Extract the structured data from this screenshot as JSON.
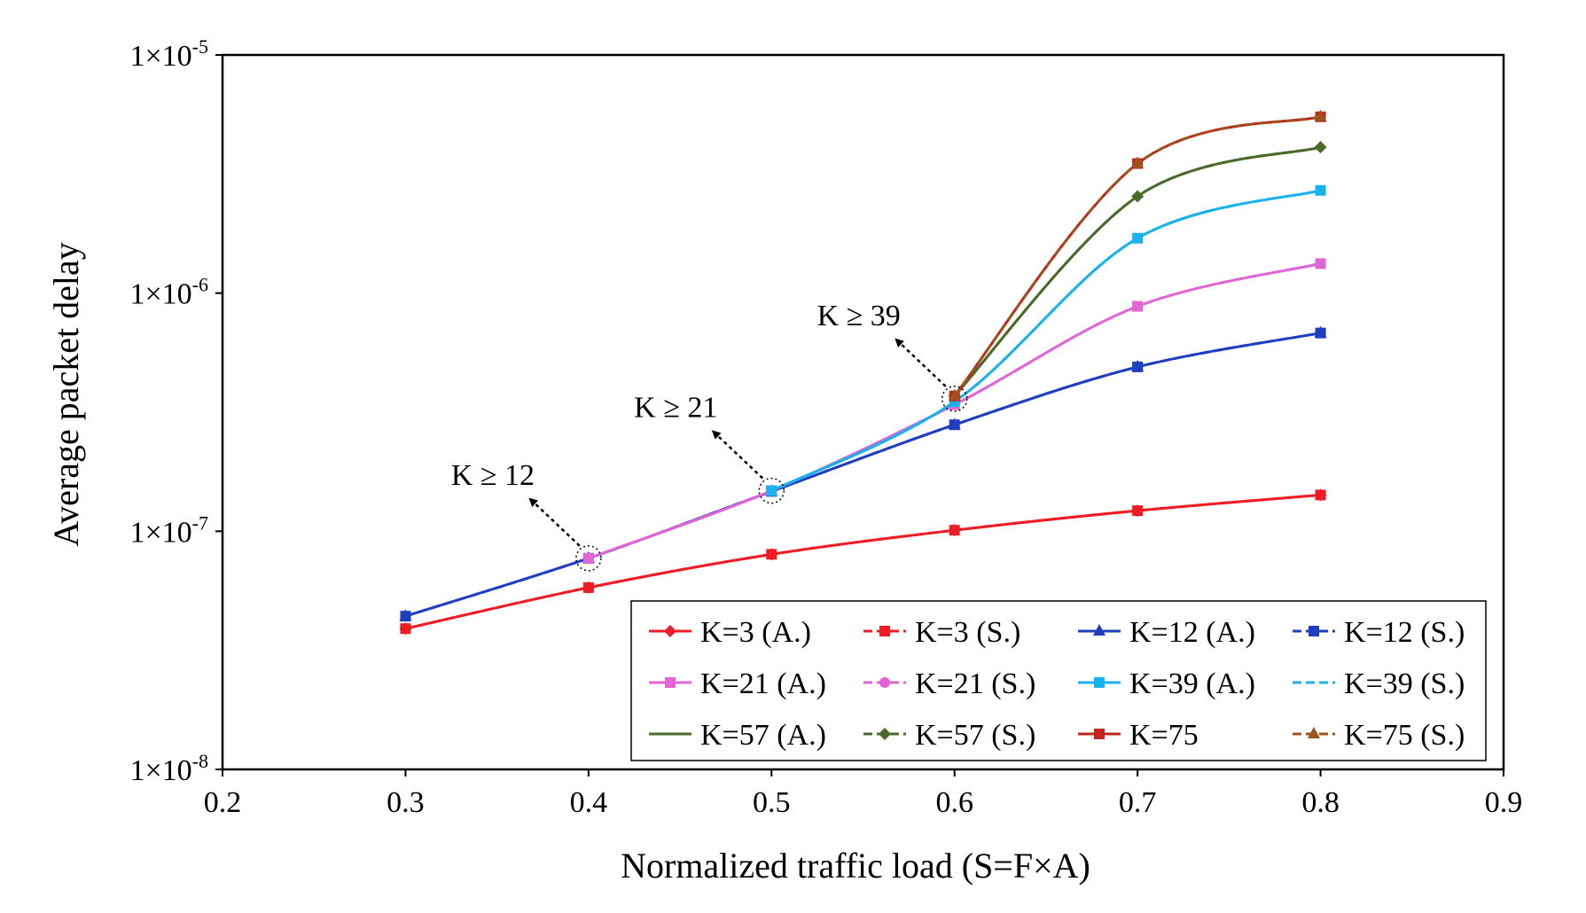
{
  "chart_data": {
    "type": "line",
    "title": "",
    "xlabel": "Normalized traffic load (S=F×A)",
    "ylabel": "Average packet delay",
    "xlim": [
      0.2,
      0.9
    ],
    "ylim": [
      1e-08,
      1e-05
    ],
    "yscale": "log",
    "grid": false,
    "legend_position": "bottom-right",
    "xticks": [
      0.2,
      0.3,
      0.4,
      0.5,
      0.6,
      0.7,
      0.8,
      0.9
    ],
    "xtick_labels": [
      "0.2",
      "0.3",
      "0.4",
      "0.5",
      "0.6",
      "0.7",
      "0.8",
      "0.9"
    ],
    "yticks": [
      {
        "value": 1e-05,
        "mantissa": "1×10",
        "exp": "-5"
      },
      {
        "value": 1e-06,
        "mantissa": "1×10",
        "exp": "-6"
      },
      {
        "value": 1e-07,
        "mantissa": "1×10",
        "exp": "-7"
      },
      {
        "value": 1e-08,
        "mantissa": "1×10",
        "exp": "-8"
      }
    ],
    "x": [
      0.3,
      0.4,
      0.5,
      0.6,
      0.7,
      0.8
    ],
    "series": [
      {
        "name": "K=3 (A.)",
        "color": "#ee1c25",
        "dash": "solid",
        "marker": "diamond",
        "values": [
          3.9e-08,
          5.8e-08,
          8e-08,
          1.01e-07,
          1.22e-07,
          1.42e-07
        ]
      },
      {
        "name": "K=3 (S.)",
        "color": "#ee1c25",
        "dash": "dashed",
        "marker": "square",
        "values": [
          3.9e-08,
          5.8e-08,
          8e-08,
          1.01e-07,
          1.22e-07,
          1.42e-07
        ]
      },
      {
        "name": "K=12 (A.)",
        "color": "#1f3fbf",
        "dash": "solid",
        "marker": "triangle",
        "values": [
          4.4e-08,
          7.7e-08,
          1.47e-07,
          2.8e-07,
          4.9e-07,
          6.8e-07
        ]
      },
      {
        "name": "K=12 (S.)",
        "color": "#1f3fbf",
        "dash": "dashed",
        "marker": "square",
        "values": [
          4.4e-08,
          7.7e-08,
          1.47e-07,
          2.8e-07,
          4.9e-07,
          6.8e-07
        ]
      },
      {
        "name": "K=21 (A.)",
        "color": "#e066d6",
        "dash": "solid",
        "marker": "square",
        "values": [
          null,
          7.7e-08,
          1.48e-07,
          3.4e-07,
          8.8e-07,
          1.33e-06
        ]
      },
      {
        "name": "K=21 (S.)",
        "color": "#e066d6",
        "dash": "dashed",
        "marker": "circle",
        "values": [
          null,
          7.7e-08,
          1.48e-07,
          3.4e-07,
          8.8e-07,
          1.33e-06
        ]
      },
      {
        "name": "K=39 (A.)",
        "color": "#1ab2ec",
        "dash": "solid",
        "marker": "square",
        "values": [
          null,
          null,
          1.48e-07,
          3.5e-07,
          1.7e-06,
          2.7e-06
        ]
      },
      {
        "name": "K=39 (S.)",
        "color": "#1ab2ec",
        "dash": "dashed",
        "marker": "none",
        "values": [
          null,
          null,
          1.48e-07,
          3.5e-07,
          1.7e-06,
          2.7e-06
        ]
      },
      {
        "name": "K=57 (A.)",
        "color": "#4a6a2a",
        "dash": "solid",
        "marker": "none",
        "values": [
          null,
          null,
          null,
          3.7e-07,
          2.55e-06,
          4.1e-06
        ]
      },
      {
        "name": "K=57 (S.)",
        "color": "#4a6a2a",
        "dash": "dashed",
        "marker": "diamond",
        "values": [
          null,
          null,
          null,
          3.7e-07,
          2.55e-06,
          4.1e-06
        ]
      },
      {
        "name": "K=75",
        "color": "#c0261f",
        "dash": "solid",
        "marker": "square",
        "values": [
          null,
          null,
          null,
          3.7e-07,
          3.5e-06,
          5.5e-06
        ]
      },
      {
        "name": "K=75 (S.)",
        "color": "#a0521e",
        "dash": "dashed",
        "marker": "triangle",
        "values": [
          null,
          null,
          null,
          3.7e-07,
          3.5e-06,
          5.5e-06
        ]
      }
    ],
    "annotations": [
      {
        "text": "K ≥ 12",
        "x": 0.4,
        "y": 7.7e-08
      },
      {
        "text": "K ≥ 21",
        "x": 0.5,
        "y": 1.48e-07
      },
      {
        "text": "K ≥ 39",
        "x": 0.6,
        "y": 3.6e-07
      }
    ]
  }
}
